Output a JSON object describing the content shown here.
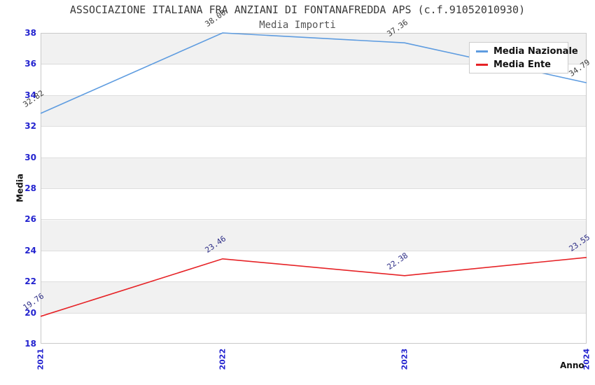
{
  "title": "ASSOCIAZIONE ITALIANA FRA ANZIANI DI FONTANAFREDDA APS (c.f.91052010930)",
  "subtitle": "Media Importi",
  "chart_data": {
    "type": "line",
    "x": [
      "2021",
      "2022",
      "2023",
      "2024"
    ],
    "series": [
      {
        "name": "Media Nazionale",
        "color": "#5e9ce0",
        "annotation_color": "#3c3c3c",
        "values": [
          32.82,
          38.0,
          37.36,
          34.79
        ],
        "annotations": [
          "32.82",
          "38.00",
          "37.36",
          "34.79"
        ]
      },
      {
        "name": "Media Ente",
        "color": "#e62226",
        "annotation_color": "#2c2c85",
        "values": [
          19.76,
          23.46,
          22.38,
          23.55
        ],
        "annotations": [
          "19.76",
          "23.46",
          "22.38",
          "23.55"
        ]
      }
    ],
    "xlabel": "Anno",
    "ylabel": "Media",
    "ylim": [
      18,
      38
    ],
    "yticks": [
      38,
      36,
      34,
      32,
      30,
      28,
      26,
      24,
      22,
      20,
      18
    ],
    "tick_color": "#2323cf",
    "grid": "horizontal alternating bands",
    "band_color": "#f1f1f1",
    "legend_position": "upper right"
  }
}
